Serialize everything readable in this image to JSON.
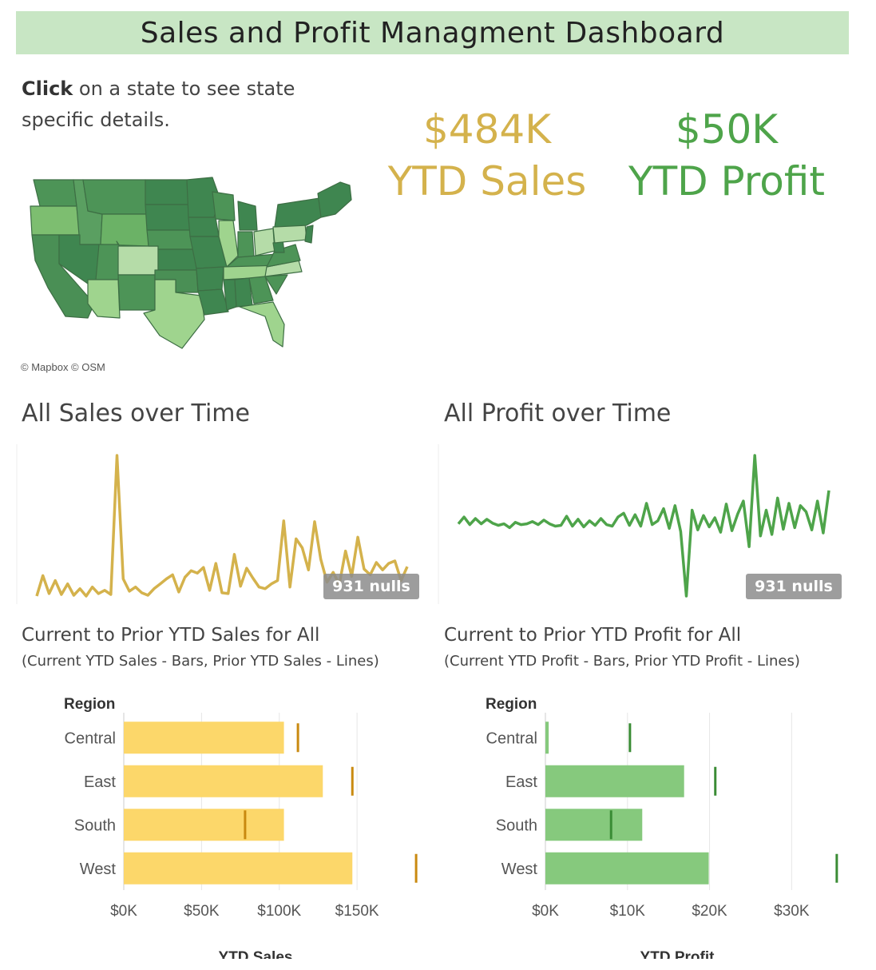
{
  "header": {
    "title": "Sales and Profit Managment Dashboard"
  },
  "instructions": {
    "bold": "Click",
    "rest": " on a state to see state specific details."
  },
  "kpis": {
    "sales": {
      "value": "$484K",
      "label": "YTD Sales",
      "color": "#d4b24c"
    },
    "profit": {
      "value": "$50K",
      "label": "YTD Profit",
      "color": "#4ea44a"
    }
  },
  "map": {
    "attribution": "© Mapbox © OSM"
  },
  "sales_time": {
    "title": "All Sales over Time",
    "nulls": "931 nulls",
    "color": "#d4b24c"
  },
  "profit_time": {
    "title": "All Profit over Time",
    "nulls": "931 nulls",
    "color": "#4ea44a"
  },
  "sales_bars": {
    "title": "Current to Prior YTD Sales for All",
    "note": "(Current YTD Sales - Bars, Prior YTD Sales - Lines)"
  },
  "profit_bars": {
    "title": "Current to Prior YTD Profit for All",
    "note": "(Current YTD Profit - Bars, Prior YTD Profit - Lines)"
  },
  "chart_data": [
    {
      "type": "line",
      "series": [
        {
          "values": [
            3,
            28,
            6,
            22,
            5,
            18,
            4,
            12,
            3,
            14,
            6,
            10,
            5,
            175,
            24,
            9,
            14,
            7,
            4,
            12,
            18,
            24,
            29,
            8,
            26,
            34,
            31,
            38,
            10,
            43,
            7,
            6,
            54,
            15,
            37,
            25,
            14,
            12,
            18,
            22,
            95,
            14,
            73,
            62,
            35,
            94,
            48,
            20,
            32,
            17,
            58,
            27,
            75,
            36,
            29,
            44,
            35,
            43,
            46,
            22,
            39
          ]
        }
      ]
    },
    {
      "type": "line",
      "series": [
        {
          "values": [
            0,
            9,
            -1,
            7,
            0,
            6,
            1,
            -2,
            0,
            -5,
            2,
            -1,
            0,
            3,
            -1,
            5,
            0,
            -3,
            -2,
            10,
            -3,
            6,
            -4,
            4,
            -2,
            7,
            -1,
            -3,
            9,
            14,
            -2,
            12,
            -3,
            27,
            -1,
            4,
            20,
            -6,
            24,
            -10,
            -95,
            18,
            -8,
            11,
            -4,
            8,
            -11,
            26,
            -9,
            13,
            30,
            -30,
            90,
            -16,
            18,
            -14,
            34,
            -7,
            27,
            -5,
            24,
            16,
            -8,
            30,
            -12,
            44
          ]
        }
      ]
    },
    {
      "type": "bar",
      "title": "Current to Prior YTD Sales for All",
      "xlabel": "YTD Sales",
      "ylabel": "Region",
      "categories": [
        "Central",
        "East",
        "South",
        "West"
      ],
      "series": [
        {
          "name": "Current YTD Sales",
          "values": [
            103000,
            128000,
            103000,
            147000
          ]
        },
        {
          "name": "Prior YTD Sales",
          "values": [
            112000,
            147000,
            78000,
            188000
          ]
        }
      ],
      "xticks": [
        "$0K",
        "$50K",
        "$100K",
        "$150K"
      ],
      "xlim": [
        0,
        190000
      ],
      "colors": {
        "bar": "#fcd76a",
        "line": "#c98a10"
      }
    },
    {
      "type": "bar",
      "title": "Current to Prior YTD Profit for All",
      "xlabel": "YTD Profit",
      "ylabel": "Region",
      "categories": [
        "Central",
        "East",
        "South",
        "West"
      ],
      "series": [
        {
          "name": "Current YTD Profit",
          "values": [
            400,
            16900,
            11800,
            19900
          ]
        },
        {
          "name": "Prior YTD Profit",
          "values": [
            10300,
            20700,
            8000,
            35500
          ]
        }
      ],
      "xticks": [
        "$0K",
        "$10K",
        "$20K",
        "$30K"
      ],
      "xlim": [
        0,
        36000
      ],
      "colors": {
        "bar": "#86c97d",
        "line": "#3a8c35"
      }
    }
  ]
}
